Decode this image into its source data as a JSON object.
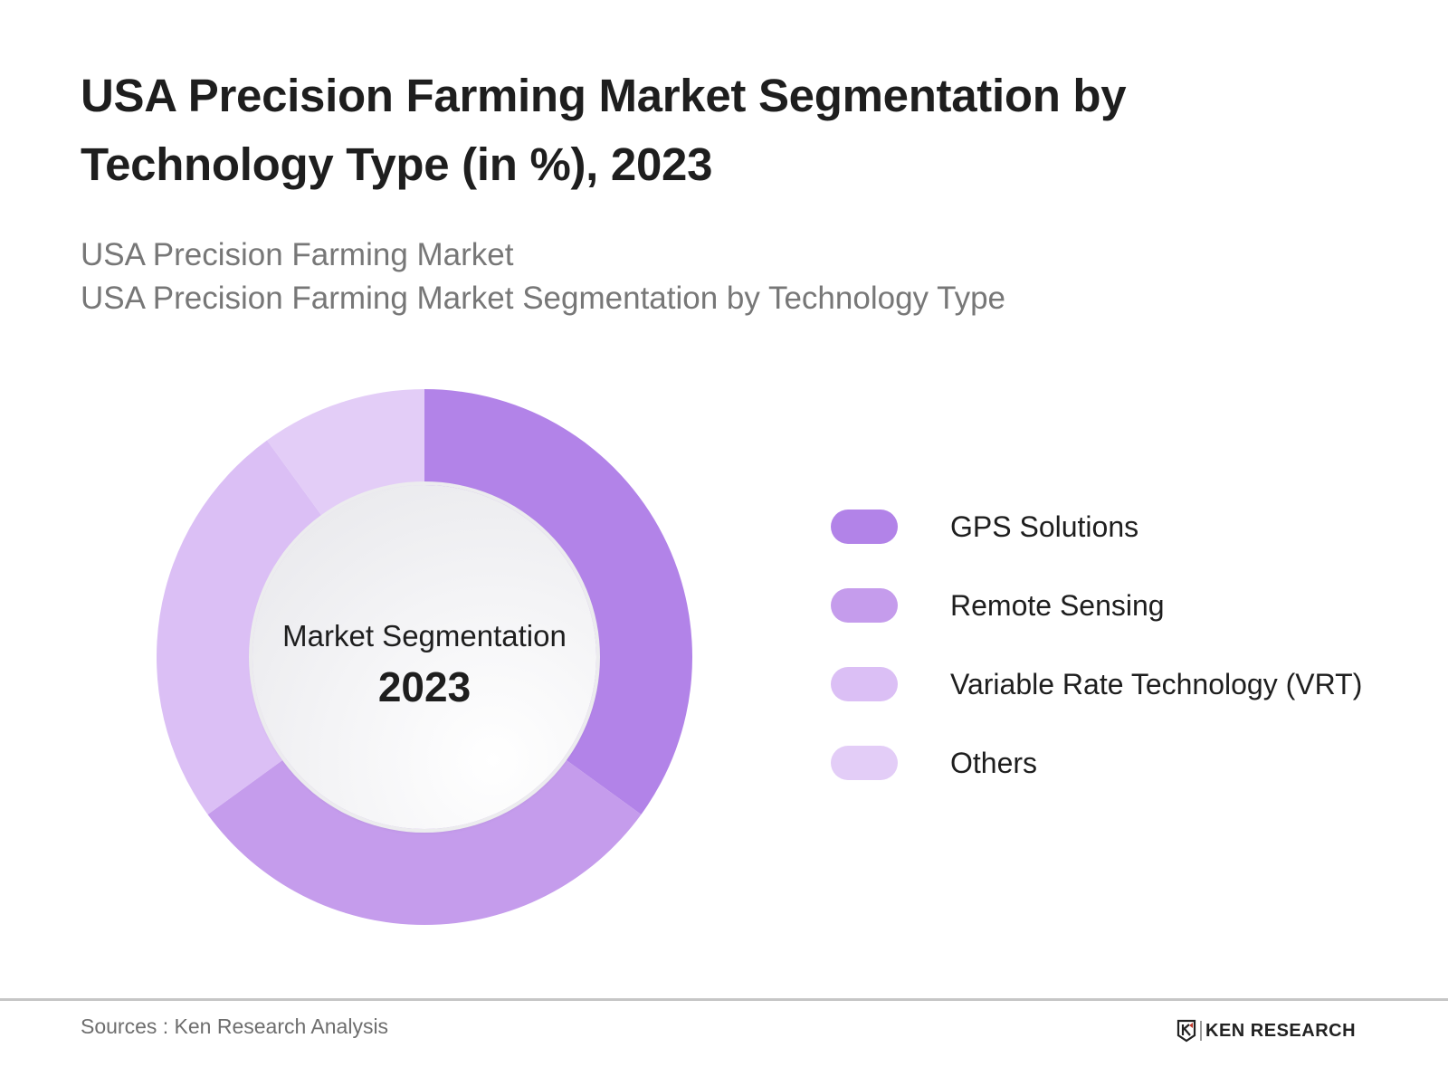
{
  "header": {
    "title": "USA Precision Farming Market Segmentation by Technology Type (in %), 2023",
    "subtitle_lines": [
      "USA Precision Farming Market",
      "USA Precision Farming Market Segmentation by Technology Type"
    ]
  },
  "donut": {
    "center_label": "Market Segmentation",
    "center_year": "2023"
  },
  "legend": {
    "items": [
      {
        "label": "GPS Solutions",
        "color": "#b283e8"
      },
      {
        "label": "Remote Sensing",
        "color": "#c59cec"
      },
      {
        "label": "Variable Rate Technology (VRT)",
        "color": "#dbbff5"
      },
      {
        "label": "Others",
        "color": "#e3cdf7"
      }
    ]
  },
  "footer": {
    "sources": "Sources : Ken Research Analysis",
    "logo_text": "KEN RESEARCH"
  },
  "chart_data": {
    "type": "pie",
    "subtype": "donut",
    "title": "USA Precision Farming Market Segmentation by Technology Type (in %), 2023",
    "subtitle": "USA Precision Farming Market / USA Precision Farming Market Segmentation by Technology Type",
    "categories": [
      "GPS Solutions",
      "Remote Sensing",
      "Variable Rate Technology (VRT)",
      "Others"
    ],
    "values": [
      35,
      30,
      25,
      10
    ],
    "unit": "%",
    "colors": [
      "#b283e8",
      "#c59cec",
      "#dbbff5",
      "#e3cdf7"
    ],
    "start_angle": "12 o'clock, clockwise",
    "center_text": [
      "Market Segmentation",
      "2023"
    ],
    "legend_position": "right",
    "data_labels": false,
    "source": "Sources : Ken Research Analysis"
  }
}
